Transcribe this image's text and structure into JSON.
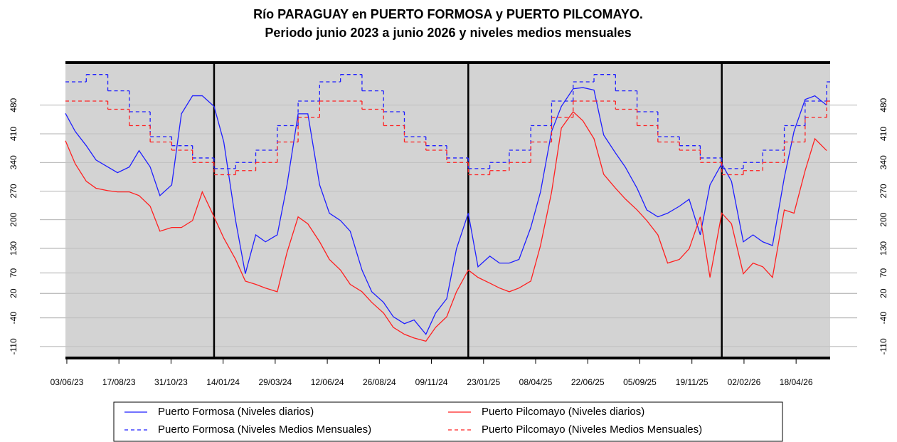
{
  "chart_data": {
    "type": "line",
    "title": "Río PARAGUAY en PUERTO FORMOSA y PUERTO PILCOMAYO.",
    "subtitle": "Periodo junio 2023 a junio 2026 y niveles medios mensuales",
    "xlim": [
      "2023-06-01",
      "2026-06-06"
    ],
    "ylim": [
      -138,
      584
    ],
    "yticks": [
      -110,
      -40,
      20,
      70,
      130,
      200,
      270,
      340,
      410,
      480
    ],
    "xticks": [
      {
        "value": "2023-06-03",
        "label": "03/06/23"
      },
      {
        "value": "2023-08-17",
        "label": "17/08/23"
      },
      {
        "value": "2023-10-31",
        "label": "31/10/23"
      },
      {
        "value": "2024-01-14",
        "label": "14/01/24"
      },
      {
        "value": "2024-03-29",
        "label": "29/03/24"
      },
      {
        "value": "2024-06-12",
        "label": "12/06/24"
      },
      {
        "value": "2024-08-26",
        "label": "26/08/24"
      },
      {
        "value": "2024-11-09",
        "label": "09/11/24"
      },
      {
        "value": "2025-01-23",
        "label": "23/01/25"
      },
      {
        "value": "2025-04-08",
        "label": "08/04/25"
      },
      {
        "value": "2025-06-22",
        "label": "22/06/25"
      },
      {
        "value": "2025-09-05",
        "label": "05/09/25"
      },
      {
        "value": "2025-11-19",
        "label": "19/11/25"
      },
      {
        "value": "2026-02-02",
        "label": "02/02/26"
      },
      {
        "value": "2026-04-18",
        "label": "18/04/26"
      }
    ],
    "year_lines": [
      "2024-01-01",
      "2025-01-01",
      "2026-01-01"
    ],
    "grid": true,
    "series": [
      {
        "name": "Puerto Formosa (Niveles diarios)",
        "color": "#1f1fff",
        "style": "solid",
        "x": [
          "2023-06-01",
          "2023-06-15",
          "2023-07-01",
          "2023-07-15",
          "2023-08-01",
          "2023-08-15",
          "2023-09-01",
          "2023-09-15",
          "2023-10-01",
          "2023-10-15",
          "2023-11-01",
          "2023-11-15",
          "2023-12-01",
          "2023-12-15",
          "2024-01-01",
          "2024-01-15",
          "2024-02-01",
          "2024-02-15",
          "2024-03-01",
          "2024-03-15",
          "2024-04-01",
          "2024-04-15",
          "2024-05-01",
          "2024-05-15",
          "2024-06-01",
          "2024-06-15",
          "2024-07-01",
          "2024-07-15",
          "2024-08-01",
          "2024-08-15",
          "2024-09-01",
          "2024-09-15",
          "2024-10-01",
          "2024-10-15",
          "2024-11-01",
          "2024-11-15",
          "2024-12-01",
          "2024-12-15",
          "2025-01-01",
          "2025-01-15",
          "2025-02-01",
          "2025-02-15",
          "2025-03-01",
          "2025-03-15",
          "2025-04-01",
          "2025-04-15",
          "2025-05-01",
          "2025-05-15",
          "2025-06-01",
          "2025-06-15",
          "2025-07-01",
          "2025-07-15",
          "2025-08-01",
          "2025-08-15",
          "2025-09-01",
          "2025-09-15",
          "2025-10-01",
          "2025-10-15",
          "2025-11-01",
          "2025-11-15",
          "2025-12-01",
          "2025-12-15",
          "2026-01-01",
          "2026-01-15",
          "2026-02-01",
          "2026-02-15",
          "2026-03-01",
          "2026-03-15",
          "2026-04-01",
          "2026-04-15",
          "2026-05-01",
          "2026-05-15",
          "2026-06-01"
        ],
        "values": [
          460,
          416,
          381,
          346,
          329,
          315,
          329,
          369,
          329,
          259,
          285,
          459,
          503,
          503,
          477,
          390,
          198,
          68,
          163,
          146,
          163,
          285,
          459,
          459,
          285,
          216,
          198,
          172,
          77,
          24,
          -2,
          -37,
          -54,
          -45,
          -80,
          -28,
          7,
          129,
          216,
          85,
          111,
          94,
          94,
          103,
          181,
          268,
          416,
          477,
          520,
          523,
          517,
          407,
          363,
          329,
          277,
          224,
          207,
          216,
          233,
          250,
          163,
          285,
          337,
          294,
          146,
          163,
          146,
          137,
          303,
          416,
          494,
          503,
          480
        ]
      },
      {
        "name": "Puerto Pilcomayo (Niveles diarios)",
        "color": "#ff2020",
        "style": "solid",
        "x": [
          "2023-06-01",
          "2023-06-15",
          "2023-07-01",
          "2023-07-15",
          "2023-08-01",
          "2023-08-15",
          "2023-09-01",
          "2023-09-15",
          "2023-10-01",
          "2023-10-15",
          "2023-11-01",
          "2023-11-15",
          "2023-12-01",
          "2023-12-15",
          "2024-01-01",
          "2024-01-15",
          "2024-02-01",
          "2024-02-15",
          "2024-03-01",
          "2024-03-15",
          "2024-04-01",
          "2024-04-15",
          "2024-05-01",
          "2024-05-15",
          "2024-06-01",
          "2024-06-15",
          "2024-07-01",
          "2024-07-15",
          "2024-08-01",
          "2024-08-15",
          "2024-09-01",
          "2024-09-15",
          "2024-10-01",
          "2024-10-15",
          "2024-11-01",
          "2024-11-15",
          "2024-12-01",
          "2024-12-15",
          "2025-01-01",
          "2025-01-15",
          "2025-02-01",
          "2025-02-15",
          "2025-03-01",
          "2025-03-15",
          "2025-04-01",
          "2025-04-15",
          "2025-05-01",
          "2025-05-15",
          "2025-06-01",
          "2025-06-15",
          "2025-07-01",
          "2025-07-15",
          "2025-08-01",
          "2025-08-15",
          "2025-09-01",
          "2025-09-15",
          "2025-10-01",
          "2025-10-15",
          "2025-11-01",
          "2025-11-15",
          "2025-12-01",
          "2025-12-15",
          "2026-01-01",
          "2026-01-15",
          "2026-02-01",
          "2026-02-15",
          "2026-03-01",
          "2026-03-15",
          "2026-04-01",
          "2026-04-15",
          "2026-05-01",
          "2026-05-15",
          "2026-06-01"
        ],
        "values": [
          393,
          337,
          294,
          277,
          271,
          268,
          268,
          259,
          233,
          172,
          181,
          181,
          198,
          268,
          207,
          155,
          103,
          50,
          42,
          33,
          24,
          120,
          207,
          190,
          146,
          103,
          77,
          42,
          24,
          -2,
          -28,
          -63,
          -80,
          -89,
          -97,
          -63,
          -37,
          24,
          77,
          59,
          45,
          33,
          24,
          33,
          50,
          137,
          268,
          424,
          464,
          442,
          398,
          311,
          277,
          251,
          224,
          198,
          163,
          94,
          103,
          129,
          207,
          59,
          216,
          190,
          68,
          94,
          85,
          59,
          224,
          216,
          320,
          398,
          369
        ]
      },
      {
        "name": "Puerto Formosa (Niveles Medios Mensuales)",
        "color": "#1f1fff",
        "style": "dashed",
        "step": true,
        "x": [
          "2023-06-01",
          "2023-07-01",
          "2023-08-01",
          "2023-09-01",
          "2023-10-01",
          "2023-11-01",
          "2023-12-01",
          "2024-01-01",
          "2024-02-01",
          "2024-03-01",
          "2024-04-01",
          "2024-05-01",
          "2024-06-01",
          "2024-07-01",
          "2024-08-01",
          "2024-09-01",
          "2024-10-01",
          "2024-11-01",
          "2024-12-01",
          "2025-01-01",
          "2025-02-01",
          "2025-03-01",
          "2025-04-01",
          "2025-05-01",
          "2025-06-01",
          "2025-07-01",
          "2025-08-01",
          "2025-09-01",
          "2025-10-01",
          "2025-11-01",
          "2025-12-01",
          "2026-01-01",
          "2026-02-01",
          "2026-03-01",
          "2026-04-01",
          "2026-05-01",
          "2026-06-01"
        ],
        "values": [
          537,
          555,
          515,
          464,
          403,
          381,
          351,
          325,
          340,
          370,
          430,
          490,
          537,
          555,
          515,
          464,
          403,
          381,
          351,
          325,
          340,
          370,
          430,
          490,
          537,
          555,
          515,
          464,
          403,
          381,
          351,
          325,
          340,
          370,
          430,
          490,
          537
        ]
      },
      {
        "name": "Puerto Pilcomayo (Niveles Medios Mensuales)",
        "color": "#ff2020",
        "style": "dashed",
        "step": true,
        "x": [
          "2023-06-01",
          "2023-07-01",
          "2023-08-01",
          "2023-09-01",
          "2023-10-01",
          "2023-11-01",
          "2023-12-01",
          "2024-01-01",
          "2024-02-01",
          "2024-03-01",
          "2024-04-01",
          "2024-05-01",
          "2024-06-01",
          "2024-07-01",
          "2024-08-01",
          "2024-09-01",
          "2024-10-01",
          "2024-11-01",
          "2024-12-01",
          "2025-01-01",
          "2025-02-01",
          "2025-03-01",
          "2025-04-01",
          "2025-05-01",
          "2025-06-01",
          "2025-07-01",
          "2025-08-01",
          "2025-09-01",
          "2025-10-01",
          "2025-11-01",
          "2025-12-01",
          "2026-01-01",
          "2026-02-01",
          "2026-03-01",
          "2026-04-01",
          "2026-05-01",
          "2026-06-01"
        ],
        "values": [
          490,
          490,
          470,
          430,
          390,
          370,
          340,
          310,
          320,
          340,
          390,
          450,
          490,
          490,
          470,
          430,
          390,
          370,
          340,
          310,
          320,
          340,
          390,
          450,
          490,
          490,
          470,
          430,
          390,
          370,
          340,
          310,
          320,
          340,
          390,
          450,
          490
        ]
      }
    ]
  }
}
